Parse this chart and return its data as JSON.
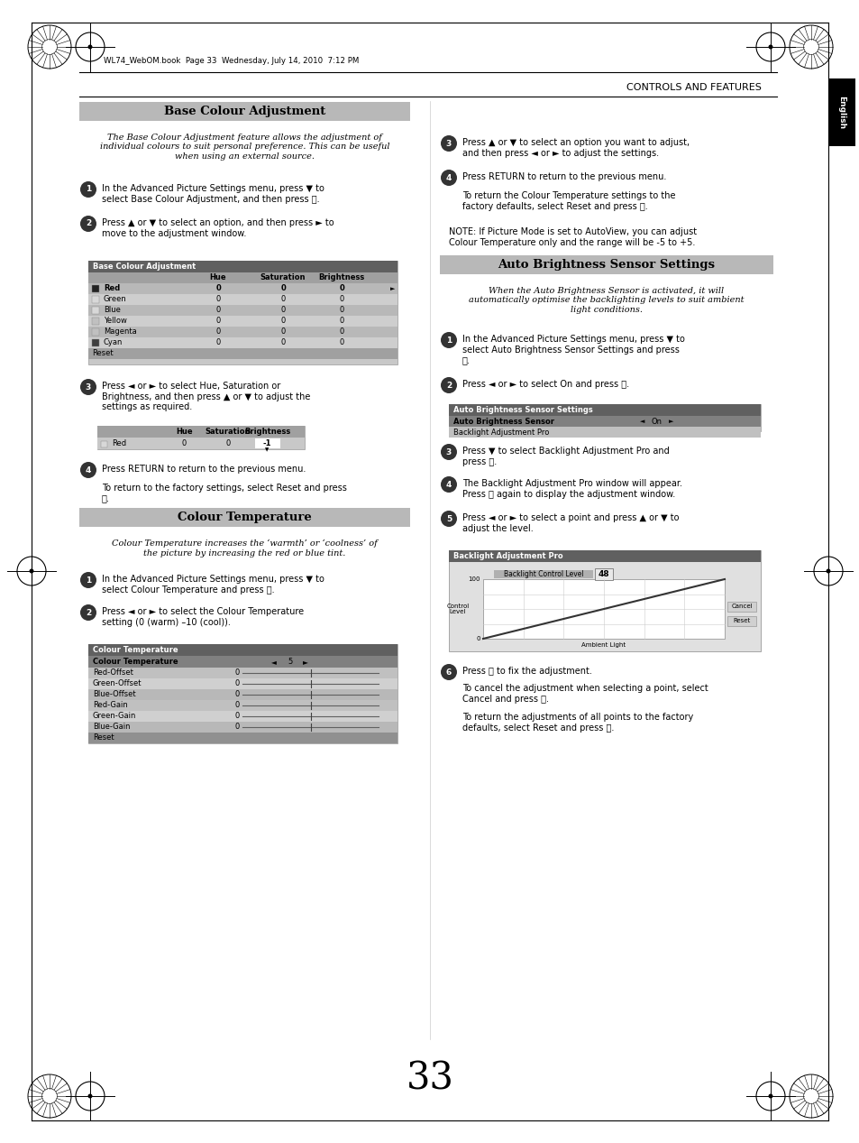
{
  "page_bg": "#ffffff",
  "page_num": "33",
  "header_text": "CONTROLS AND FEATURES",
  "header_file": "WL74_WebOM.book  Page 33  Wednesday, July 14, 2010  7:12 PM",
  "english_tab": "English",
  "section1_title": "Base Colour Adjustment",
  "section2_title": "Colour Temperature",
  "section3_title": "Auto Brightness Sensor Settings"
}
